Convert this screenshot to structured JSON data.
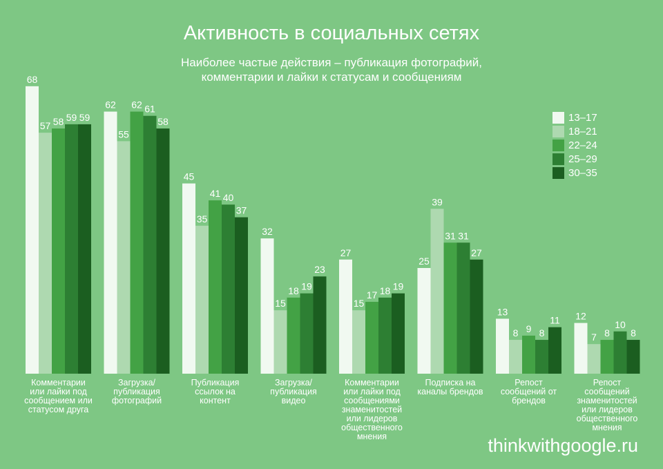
{
  "chart_data": {
    "type": "bar",
    "title": "Активность в социальных сетях",
    "subtitle": [
      "Наиболее частые действия – публикация фотографий,",
      "комментарии и лайки к статусам и сообщениям"
    ],
    "categories": [
      [
        "Комментарии",
        "или лайки под",
        "сообщением или",
        "статусом друга"
      ],
      [
        "Загрузка/",
        "публикация",
        "фотографий"
      ],
      [
        "Публикация",
        "ссылок на",
        "контент"
      ],
      [
        "Загрузка/",
        "публикация",
        "видео"
      ],
      [
        "Комментарии",
        "или лайки под",
        "сообщениями",
        "знаменитостей",
        "или лидеров",
        "общественного",
        "мнения"
      ],
      [
        "Подписка на",
        "каналы брендов"
      ],
      [
        "Репост",
        "сообщений от",
        "брендов"
      ],
      [
        "Репост",
        "сообщений",
        "знаменитостей",
        "или лидеров",
        "общественного",
        "мнения"
      ]
    ],
    "series": [
      {
        "name": "13–17",
        "color": "#f1f9f1",
        "values": [
          68,
          62,
          45,
          32,
          27,
          25,
          13,
          12
        ]
      },
      {
        "name": "18–21",
        "color": "#aed9b0",
        "values": [
          57,
          55,
          35,
          15,
          15,
          39,
          8,
          7
        ]
      },
      {
        "name": "22–24",
        "color": "#43a245",
        "values": [
          58,
          62,
          41,
          18,
          17,
          31,
          9,
          8
        ]
      },
      {
        "name": "25–29",
        "color": "#2d7f33",
        "values": [
          59,
          61,
          40,
          19,
          18,
          31,
          8,
          10
        ]
      },
      {
        "name": "30–35",
        "color": "#1b5e20",
        "values": [
          59,
          58,
          37,
          23,
          19,
          27,
          11,
          8
        ]
      }
    ],
    "ylim": [
      0,
      70
    ],
    "legend_position": "right",
    "grid": false
  },
  "brand": "thinkwithgoogle.ru"
}
